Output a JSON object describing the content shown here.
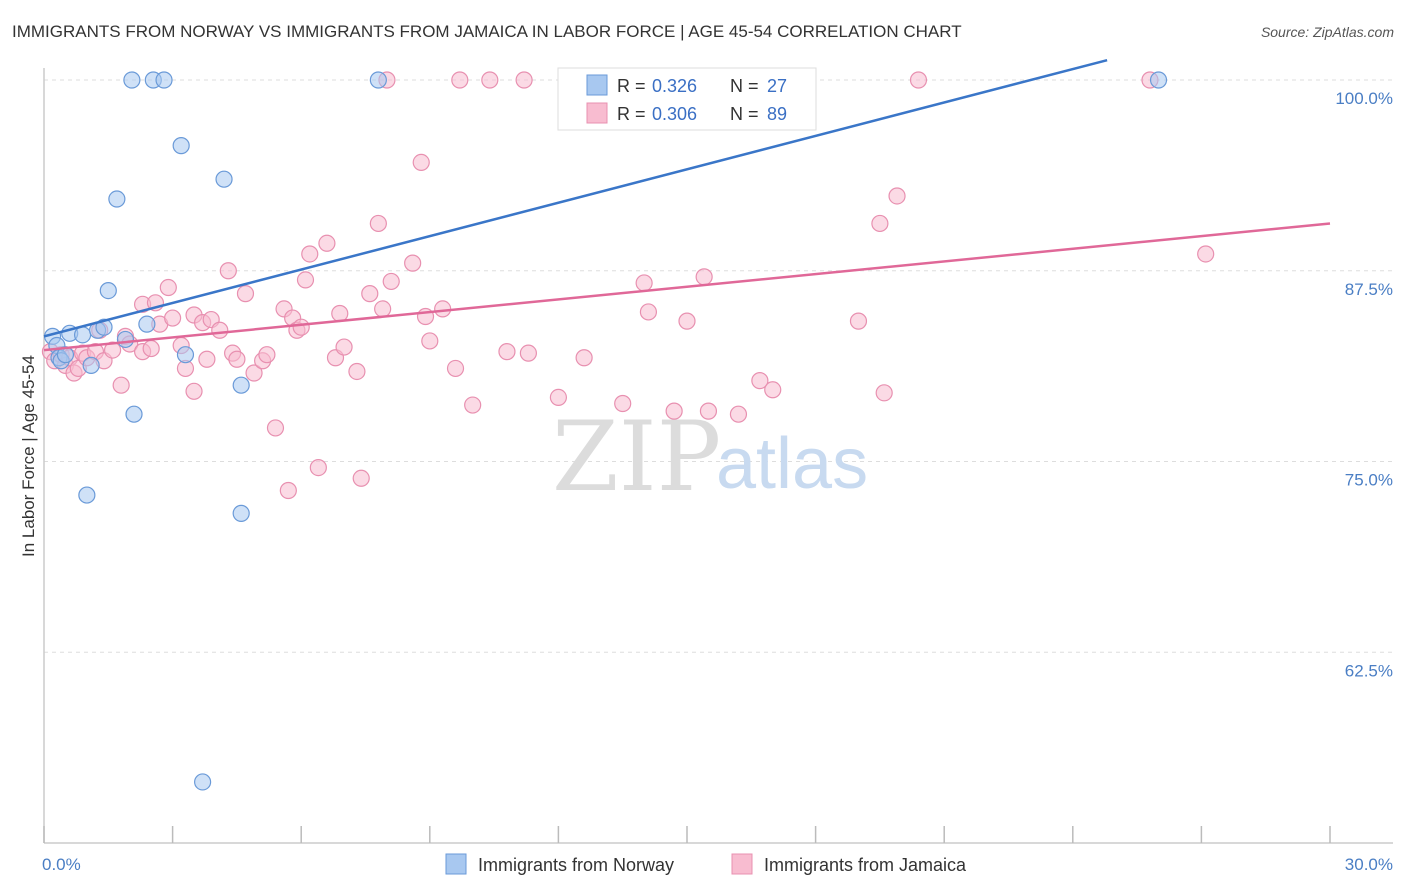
{
  "title": "IMMIGRANTS FROM NORWAY VS IMMIGRANTS FROM JAMAICA IN LABOR FORCE | AGE 45-54 CORRELATION CHART",
  "source": "Source: ZipAtlas.com",
  "watermark": {
    "zip": "ZIP",
    "atlas": "atlas"
  },
  "colors": {
    "norway_fill": "#a8c8f0",
    "norway_stroke": "#6a9ad8",
    "norway_line": "#3a76c8",
    "jamaica_fill": "#f8bcd0",
    "jamaica_stroke": "#e890b0",
    "jamaica_line": "#e06898",
    "grid": "#dddddd",
    "axis_label": "#4a7ec4"
  },
  "legend_box": {
    "rows": [
      {
        "r_label": "R =",
        "r_value": "0.326",
        "n_label": "N =",
        "n_value": "27"
      },
      {
        "r_label": "R =",
        "r_value": "0.306",
        "n_label": "N =",
        "n_value": "89"
      }
    ]
  },
  "chart_data": {
    "type": "scatter",
    "xlabel": "",
    "ylabel": "In Labor Force | Age 45-54",
    "xlim": [
      0,
      30
    ],
    "ylim": [
      50,
      102.5
    ],
    "x_tick_labels": [
      "0.0%",
      "30.0%"
    ],
    "y_ticks": [
      62.5,
      75.0,
      87.5,
      100.0
    ],
    "y_tick_labels": [
      "62.5%",
      "75.0%",
      "87.5%",
      "100.0%"
    ],
    "grid": true,
    "legend_position": "bottom",
    "series": [
      {
        "name": "Immigrants from Norway",
        "R": 0.326,
        "N": 27,
        "trend": {
          "x": [
            0.0,
            24.8
          ],
          "y": [
            83.2,
            101.3
          ]
        },
        "points": [
          [
            0.2,
            83.2
          ],
          [
            0.3,
            82.6
          ],
          [
            0.35,
            81.8
          ],
          [
            0.4,
            81.6
          ],
          [
            0.6,
            83.4
          ],
          [
            0.9,
            83.3
          ],
          [
            1.1,
            81.3
          ],
          [
            1.25,
            83.6
          ],
          [
            1.4,
            83.8
          ],
          [
            1.5,
            86.2
          ],
          [
            1.7,
            92.2
          ],
          [
            1.9,
            83.0
          ],
          [
            2.1,
            78.1
          ],
          [
            2.4,
            84.0
          ],
          [
            2.05,
            100.0
          ],
          [
            2.55,
            100.0
          ],
          [
            2.8,
            100.0
          ],
          [
            3.2,
            95.7
          ],
          [
            3.3,
            82.0
          ],
          [
            4.2,
            93.5
          ],
          [
            4.6,
            71.6
          ],
          [
            4.6,
            80.0
          ],
          [
            3.7,
            54.0
          ],
          [
            7.8,
            100.0
          ],
          [
            1.0,
            72.8
          ],
          [
            26.0,
            100.0
          ],
          [
            0.5,
            82.0
          ]
        ]
      },
      {
        "name": "Immigrants from Jamaica",
        "R": 0.306,
        "N": 89,
        "trend": {
          "x": [
            0.0,
            30.0
          ],
          "y": [
            82.3,
            90.6
          ]
        },
        "points": [
          [
            0.15,
            82.2
          ],
          [
            0.25,
            81.6
          ],
          [
            0.4,
            82.0
          ],
          [
            0.5,
            81.3
          ],
          [
            0.6,
            81.8
          ],
          [
            0.7,
            80.8
          ],
          [
            0.8,
            81.1
          ],
          [
            0.9,
            82.1
          ],
          [
            1.0,
            81.8
          ],
          [
            1.2,
            82.2
          ],
          [
            1.3,
            83.6
          ],
          [
            1.4,
            81.6
          ],
          [
            1.6,
            82.3
          ],
          [
            1.8,
            80.0
          ],
          [
            1.9,
            83.2
          ],
          [
            2.0,
            82.7
          ],
          [
            2.3,
            82.2
          ],
          [
            2.3,
            85.3
          ],
          [
            2.5,
            82.4
          ],
          [
            2.6,
            85.4
          ],
          [
            2.7,
            84.0
          ],
          [
            2.9,
            86.4
          ],
          [
            3.0,
            84.4
          ],
          [
            3.2,
            82.6
          ],
          [
            3.3,
            81.1
          ],
          [
            3.5,
            79.6
          ],
          [
            3.5,
            84.6
          ],
          [
            3.7,
            84.1
          ],
          [
            3.8,
            81.7
          ],
          [
            3.9,
            84.3
          ],
          [
            4.1,
            83.6
          ],
          [
            4.3,
            87.5
          ],
          [
            4.4,
            82.1
          ],
          [
            4.5,
            81.7
          ],
          [
            4.7,
            86.0
          ],
          [
            4.9,
            80.8
          ],
          [
            5.1,
            81.6
          ],
          [
            5.2,
            82.0
          ],
          [
            5.4,
            77.2
          ],
          [
            5.6,
            85.0
          ],
          [
            5.7,
            73.1
          ],
          [
            5.8,
            84.4
          ],
          [
            5.9,
            83.6
          ],
          [
            6.0,
            83.8
          ],
          [
            6.1,
            86.9
          ],
          [
            6.2,
            88.6
          ],
          [
            6.4,
            74.6
          ],
          [
            6.6,
            89.3
          ],
          [
            6.8,
            81.8
          ],
          [
            6.9,
            84.7
          ],
          [
            7.0,
            82.5
          ],
          [
            7.3,
            80.9
          ],
          [
            7.4,
            73.9
          ],
          [
            7.6,
            86.0
          ],
          [
            7.8,
            90.6
          ],
          [
            7.9,
            85.0
          ],
          [
            8.0,
            100.0
          ],
          [
            8.1,
            86.8
          ],
          [
            8.6,
            88.0
          ],
          [
            8.8,
            94.6
          ],
          [
            8.9,
            84.5
          ],
          [
            9.0,
            82.9
          ],
          [
            9.3,
            85.0
          ],
          [
            9.6,
            81.1
          ],
          [
            9.7,
            100.0
          ],
          [
            10.0,
            78.7
          ],
          [
            10.4,
            100.0
          ],
          [
            10.8,
            82.2
          ],
          [
            11.2,
            100.0
          ],
          [
            12.0,
            79.2
          ],
          [
            12.6,
            81.8
          ],
          [
            13.5,
            78.8
          ],
          [
            14.0,
            86.7
          ],
          [
            14.1,
            84.8
          ],
          [
            14.7,
            78.3
          ],
          [
            15.0,
            84.2
          ],
          [
            15.4,
            87.1
          ],
          [
            15.5,
            78.3
          ],
          [
            16.2,
            78.1
          ],
          [
            16.7,
            80.3
          ],
          [
            17.0,
            79.7
          ],
          [
            19.0,
            84.2
          ],
          [
            19.5,
            90.6
          ],
          [
            19.6,
            79.5
          ],
          [
            19.9,
            92.4
          ],
          [
            20.4,
            100.0
          ],
          [
            25.8,
            100.0
          ],
          [
            27.1,
            88.6
          ],
          [
            11.3,
            82.1
          ]
        ]
      }
    ]
  }
}
